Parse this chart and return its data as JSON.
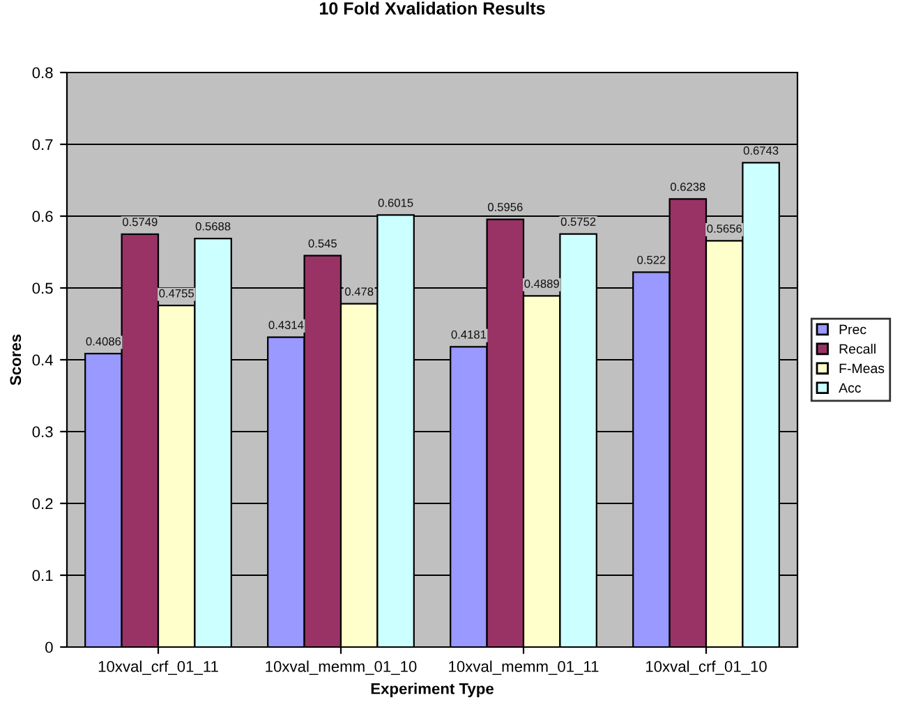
{
  "chart_data": {
    "type": "bar",
    "title": "10 Fold Xvalidation Results",
    "xlabel": "Experiment Type",
    "ylabel": "Scores",
    "categories": [
      "10xval_crf_01_11",
      "10xval_memm_01_10",
      "10xval_memm_01_11",
      "10xval_crf_01_10"
    ],
    "series": [
      {
        "name": "Prec",
        "color": "#9999ff",
        "values": [
          0.4086,
          0.4314,
          0.4181,
          0.522
        ]
      },
      {
        "name": "Recall",
        "color": "#993366",
        "values": [
          0.5749,
          0.545,
          0.5956,
          0.6238
        ]
      },
      {
        "name": "F-Meas",
        "color": "#ffffcc",
        "values": [
          0.4755,
          0.478,
          0.4889,
          0.5656
        ]
      },
      {
        "name": "Acc",
        "color": "#ccffff",
        "values": [
          0.5688,
          0.6015,
          0.5752,
          0.6743
        ]
      }
    ],
    "ylim": [
      0,
      0.8
    ],
    "yticks": [
      0,
      0.1,
      0.2,
      0.3,
      0.4,
      0.5,
      0.6,
      0.7,
      0.8
    ],
    "grid": "y",
    "legend": "right",
    "data_labels": true
  }
}
